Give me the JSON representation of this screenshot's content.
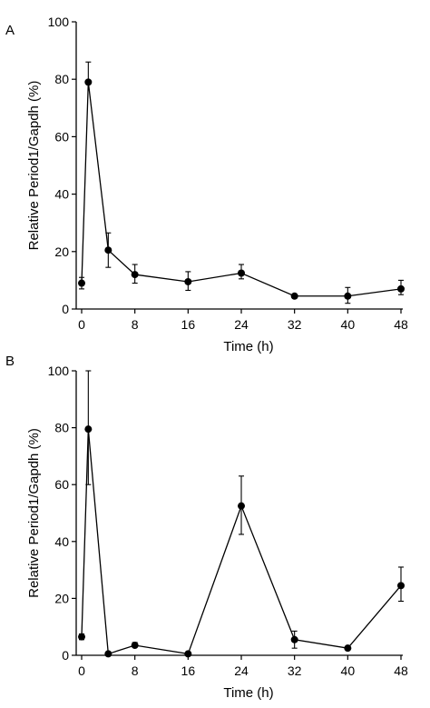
{
  "chart_data": [
    {
      "type": "line",
      "panel_label": "A",
      "xlabel": "Time (h)",
      "ylabel": "Relative Period1/Gapdh (%)",
      "xlim": [
        0,
        48
      ],
      "ylim": [
        0,
        100
      ],
      "xticks": [
        0,
        8,
        16,
        24,
        32,
        40,
        48
      ],
      "yticks": [
        0,
        20,
        40,
        60,
        80,
        100
      ],
      "grid": false,
      "series": [
        {
          "marker": "circle",
          "color": "#000000",
          "x": [
            0,
            1,
            4,
            8,
            16,
            24,
            32,
            40,
            48
          ],
          "y": [
            9,
            79,
            20.5,
            12,
            9.5,
            12.5,
            4.5,
            4.5,
            7
          ],
          "error_upper": [
            2,
            7,
            6,
            3.5,
            3.5,
            3,
            0.5,
            3,
            3
          ],
          "error_lower": [
            2,
            0,
            6,
            3,
            3,
            2,
            0,
            2.5,
            2
          ]
        }
      ]
    },
    {
      "type": "line",
      "panel_label": "B",
      "xlabel": "Time (h)",
      "ylabel": "Relative Period1/Gapdh (%)",
      "xlim": [
        0,
        48
      ],
      "ylim": [
        0,
        100
      ],
      "xticks": [
        0,
        8,
        16,
        24,
        32,
        40,
        48
      ],
      "yticks": [
        0,
        20,
        40,
        60,
        80,
        100
      ],
      "grid": false,
      "series": [
        {
          "marker": "circle",
          "color": "#000000",
          "x": [
            0,
            1,
            4,
            8,
            16,
            24,
            32,
            40,
            48
          ],
          "y": [
            6.5,
            79.5,
            0.5,
            3.5,
            0.5,
            52.5,
            5.5,
            2.5,
            24.5
          ],
          "error_upper": [
            1,
            20.5,
            0,
            1,
            0,
            10.5,
            3,
            0,
            6.5
          ],
          "error_lower": [
            1,
            19.5,
            0,
            0,
            0,
            10,
            3,
            0,
            5.5
          ]
        }
      ]
    }
  ]
}
